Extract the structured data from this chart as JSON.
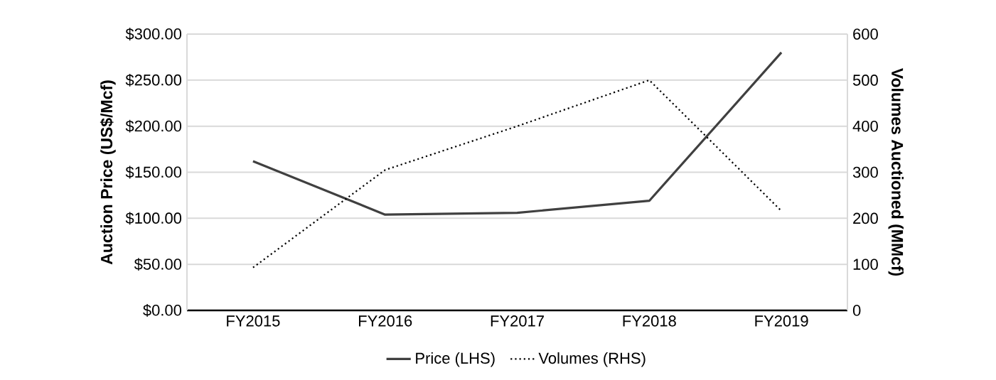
{
  "chart_data": {
    "type": "line",
    "ylabel": "Auction Price (US$/Mcf)",
    "y2label": "Volumes Auctioned (MMcf)",
    "categories": [
      "FY2015",
      "FY2016",
      "FY2017",
      "FY2018",
      "FY2019"
    ],
    "series": [
      {
        "name": "Price (LHS)",
        "color": "#404040",
        "line_style": "solid",
        "values": [
          162,
          104,
          106,
          119,
          280
        ]
      },
      {
        "name": "Volumes (RHS)",
        "color": "#000000",
        "line_style": "dotted",
        "axis": "y2",
        "values": [
          93,
          305,
          400,
          500,
          216
        ]
      }
    ],
    "ylim": [
      0,
      300
    ],
    "yticks": [
      {
        "value": 0,
        "label": "$0.00"
      },
      {
        "value": 50,
        "label": "$50.00"
      },
      {
        "value": 100,
        "label": "$100.00"
      },
      {
        "value": 150,
        "label": "$150.00"
      },
      {
        "value": 200,
        "label": "$200.00"
      },
      {
        "value": 250,
        "label": "$250.00"
      },
      {
        "value": 300,
        "label": "$300.00"
      }
    ],
    "y2lim": [
      0,
      600
    ],
    "y2ticks": [
      0,
      100,
      200,
      300,
      400,
      500,
      600
    ],
    "grid": "y",
    "legend": "bottom",
    "marker": "none"
  }
}
